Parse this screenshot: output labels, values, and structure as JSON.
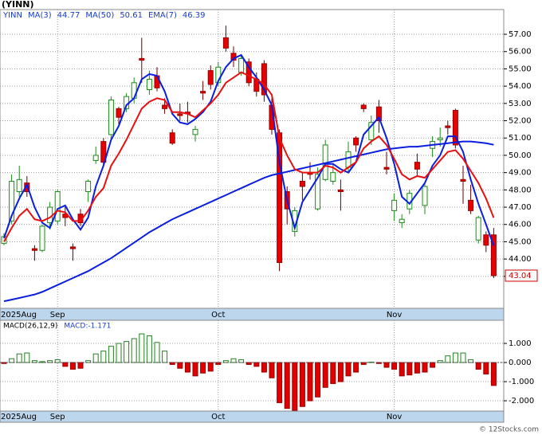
{
  "chart_data": {
    "type": "candlestick",
    "title": "(YINN)",
    "symbol": "YINN",
    "watermark": "© 12Stocks.com",
    "categories": [
      "2025Aug",
      null,
      null,
      null,
      null,
      null,
      null,
      "Sep",
      null,
      null,
      null,
      null,
      null,
      null,
      null,
      null,
      null,
      null,
      null,
      null,
      null,
      null,
      null,
      null,
      null,
      null,
      null,
      null,
      "Oct",
      null,
      null,
      null,
      null,
      null,
      null,
      null,
      null,
      null,
      null,
      null,
      null,
      null,
      null,
      null,
      null,
      null,
      null,
      null,
      null,
      null,
      null,
      "Nov",
      null,
      null,
      null,
      null,
      null,
      null,
      null,
      null,
      null,
      null,
      null,
      null,
      null
    ],
    "open": [
      44.9,
      46.2,
      47.9,
      48.4,
      44.6,
      44.5,
      46.1,
      46.2,
      46.6,
      44.7,
      46.6,
      47.9,
      49.7,
      50.8,
      51.2,
      52.7,
      52.7,
      53.3,
      55.6,
      53.8,
      54.6,
      52.9,
      51.3,
      52.4,
      52.5,
      51.2,
      53.7,
      54.9,
      54.2,
      56.8,
      55.9,
      54.8,
      55.4,
      54.4,
      55.3,
      52.9,
      51.3,
      47.9,
      45.6,
      48.5,
      49.0,
      46.9,
      48.6,
      48.5,
      48.0,
      49.3,
      51.0,
      52.9,
      50.9,
      52.8,
      49.3,
      46.8,
      46.1,
      46.9,
      49.6,
      47.1,
      50.4,
      50.9,
      51.7,
      52.6,
      48.6,
      47.4,
      45.1,
      45.4,
      45.4
    ],
    "high": [
      45.5,
      48.9,
      49.4,
      48.8,
      44.8,
      46.0,
      47.3,
      48.0,
      47.0,
      44.9,
      46.9,
      48.6,
      50.5,
      51.0,
      53.4,
      52.8,
      53.6,
      54.5,
      56.8,
      54.9,
      55.1,
      53.3,
      51.5,
      53.0,
      53.1,
      51.7,
      54.3,
      55.2,
      55.4,
      57.5,
      56.3,
      55.8,
      55.6,
      54.8,
      55.5,
      53.3,
      51.5,
      48.2,
      47.0,
      49.0,
      49.6,
      49.3,
      50.9,
      49.5,
      48.6,
      50.8,
      51.1,
      53.0,
      52.3,
      53.2,
      50.2,
      47.8,
      46.6,
      48.0,
      50.1,
      48.4,
      51.1,
      51.6,
      52.0,
      52.7,
      49.4,
      48.3,
      46.5,
      45.6,
      45.8
    ],
    "low": [
      44.8,
      46.0,
      47.6,
      47.6,
      43.9,
      44.4,
      45.7,
      46.0,
      45.9,
      43.9,
      45.9,
      47.3,
      49.5,
      49.4,
      51.0,
      51.8,
      52.5,
      53.0,
      54.2,
      53.5,
      53.7,
      52.4,
      50.6,
      52.0,
      51.9,
      50.8,
      53.2,
      53.8,
      54.0,
      56.0,
      55.1,
      54.6,
      54.0,
      53.4,
      53.1,
      51.2,
      43.3,
      46.0,
      45.3,
      47.4,
      48.6,
      46.8,
      48.5,
      48.3,
      46.8,
      49.0,
      50.2,
      52.5,
      50.6,
      51.3,
      48.9,
      46.2,
      45.8,
      46.6,
      48.8,
      46.6,
      49.9,
      50.5,
      51.2,
      50.4,
      47.2,
      46.6,
      44.9,
      44.4,
      42.9
    ],
    "close": [
      45.3,
      48.5,
      48.6,
      47.9,
      44.5,
      45.9,
      47.0,
      47.9,
      46.4,
      44.6,
      46.1,
      48.5,
      50.0,
      49.6,
      53.2,
      52.2,
      53.4,
      54.2,
      55.5,
      54.4,
      53.9,
      52.7,
      50.7,
      52.3,
      52.4,
      51.5,
      53.6,
      54.1,
      55.1,
      56.2,
      55.5,
      55.6,
      54.2,
      53.7,
      53.5,
      51.5,
      43.8,
      46.9,
      46.8,
      48.2,
      48.9,
      48.9,
      50.6,
      49.0,
      47.9,
      50.2,
      50.6,
      52.7,
      51.9,
      52.0,
      49.2,
      47.4,
      46.3,
      47.8,
      49.2,
      48.2,
      50.8,
      51.0,
      51.6,
      50.6,
      48.5,
      46.8,
      46.4,
      44.8,
      43.04
    ],
    "last_label": "43.04",
    "up_color": "#1f8a1f",
    "down_color": "#e80000",
    "series": [
      {
        "name": "MA(3)",
        "color": "#0a1ee0",
        "value_label": "44.77",
        "values": [
          45.2,
          46.5,
          47.5,
          48.3,
          47.0,
          46.1,
          45.8,
          46.9,
          47.1,
          46.3,
          45.7,
          46.4,
          48.2,
          49.4,
          50.9,
          51.7,
          52.9,
          53.3,
          54.4,
          54.7,
          54.6,
          53.7,
          52.4,
          51.9,
          51.8,
          52.1,
          52.5,
          53.1,
          54.3,
          55.1,
          55.6,
          55.8,
          55.1,
          54.5,
          53.8,
          52.9,
          49.6,
          47.4,
          45.8,
          47.3,
          48.0,
          48.7,
          49.5,
          49.5,
          49.2,
          49.0,
          49.6,
          51.2,
          51.7,
          52.2,
          51.0,
          49.5,
          47.6,
          47.2,
          47.8,
          48.4,
          49.4,
          50.0,
          51.1,
          51.1,
          50.2,
          48.6,
          47.2,
          46.0,
          44.77
        ]
      },
      {
        "name": "MA(50)",
        "color": "#0a1ee0",
        "value_label": "50.61",
        "values": [
          41.56,
          41.65,
          41.75,
          41.85,
          41.95,
          42.1,
          42.3,
          42.5,
          42.7,
          42.9,
          43.1,
          43.3,
          43.55,
          43.8,
          44.05,
          44.35,
          44.65,
          44.95,
          45.25,
          45.55,
          45.8,
          46.05,
          46.3,
          46.5,
          46.7,
          46.9,
          47.1,
          47.3,
          47.5,
          47.7,
          47.9,
          48.1,
          48.3,
          48.5,
          48.7,
          48.85,
          48.95,
          49.05,
          49.15,
          49.25,
          49.35,
          49.45,
          49.55,
          49.65,
          49.75,
          49.85,
          49.95,
          50.05,
          50.15,
          50.25,
          50.35,
          50.4,
          50.45,
          50.5,
          50.5,
          50.55,
          50.6,
          50.65,
          50.7,
          50.75,
          50.8,
          50.8,
          50.75,
          50.7,
          50.61
        ]
      },
      {
        "name": "EMA(7)",
        "color": "#e81010",
        "value_label": "46.39",
        "values": [
          45.0,
          45.8,
          46.5,
          46.9,
          46.3,
          46.2,
          46.4,
          46.8,
          46.7,
          46.2,
          46.2,
          46.8,
          47.6,
          48.1,
          49.4,
          50.1,
          50.9,
          51.8,
          52.7,
          53.1,
          53.3,
          53.2,
          52.5,
          52.5,
          52.4,
          52.2,
          52.6,
          53.0,
          53.5,
          54.2,
          54.5,
          54.8,
          54.6,
          54.4,
          54.1,
          53.5,
          51.0,
          50.0,
          49.2,
          49.0,
          49.0,
          49.0,
          49.4,
          49.3,
          49.0,
          49.3,
          49.6,
          50.4,
          50.8,
          51.1,
          50.6,
          49.8,
          48.9,
          48.6,
          48.8,
          48.7,
          49.2,
          49.7,
          50.2,
          50.3,
          49.8,
          49.1,
          48.4,
          47.5,
          46.39
        ]
      }
    ],
    "ylim": [
      41.15,
      58.43
    ],
    "yticks": [
      {
        "value": 43,
        "label": "43.00"
      },
      {
        "value": 44,
        "label": "44.00"
      },
      {
        "value": 45,
        "label": "45.00"
      },
      {
        "value": 46,
        "label": "46.00"
      },
      {
        "value": 47,
        "label": "47.00"
      },
      {
        "value": 48,
        "label": "48.00"
      },
      {
        "value": 49,
        "label": "49.00"
      },
      {
        "value": 50,
        "label": "50.00"
      },
      {
        "value": 51,
        "label": "51.00"
      },
      {
        "value": 52,
        "label": "52.00"
      },
      {
        "value": 53,
        "label": "53.00"
      },
      {
        "value": 54,
        "label": "54.00"
      },
      {
        "value": 55,
        "label": "55.00"
      },
      {
        "value": 56,
        "label": "56.00"
      },
      {
        "value": 57,
        "label": "57.00"
      }
    ],
    "grid": true,
    "macd": {
      "name": "MACD(26,12,9)",
      "label": "MACD:-1.171",
      "pos_color": "#2e7d2e",
      "neg_color": "#e00000",
      "values": [
        -0.05,
        0.2,
        0.45,
        0.5,
        0.1,
        0.05,
        0.1,
        0.15,
        -0.2,
        -0.35,
        -0.3,
        0.1,
        0.45,
        0.6,
        0.85,
        1.0,
        1.1,
        1.25,
        1.5,
        1.4,
        1.05,
        0.6,
        -0.1,
        -0.3,
        -0.5,
        -0.7,
        -0.55,
        -0.45,
        -0.1,
        0.1,
        0.2,
        0.15,
        -0.1,
        -0.2,
        -0.5,
        -0.8,
        -2.1,
        -2.4,
        -2.5,
        -2.3,
        -2.0,
        -1.8,
        -1.3,
        -1.1,
        -1.0,
        -0.7,
        -0.5,
        -0.1,
        0.02,
        -0.05,
        -0.25,
        -0.35,
        -0.7,
        -0.65,
        -0.55,
        -0.5,
        -0.25,
        0.1,
        0.35,
        0.5,
        0.5,
        0.15,
        -0.35,
        -0.6,
        -1.2
      ],
      "ylim": [
        -2.54,
        2.21
      ],
      "yticks": [
        {
          "value": -2,
          "label": "-2.000"
        },
        {
          "value": -1,
          "label": "-1.000"
        },
        {
          "value": 0,
          "label": "0.000"
        },
        {
          "value": 1,
          "label": "1.000"
        }
      ]
    }
  }
}
